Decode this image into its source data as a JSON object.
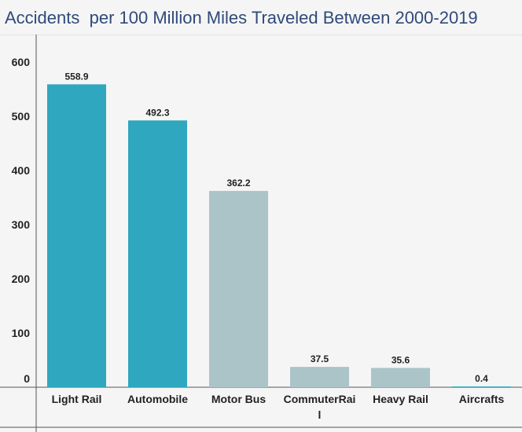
{
  "title": "Accidents  per 100 Million Miles Traveled Between 2000-2019",
  "colors": {
    "highlight": "#2ea7bf",
    "muted": "#abc4c8",
    "axis": "#555555",
    "text": "#222222",
    "title": "#2f4a7a"
  },
  "chart_data": {
    "type": "bar",
    "title": "Accidents  per 100 Million Miles Traveled Between 2000-2019",
    "categories": [
      "Light Rail",
      "Automobile",
      "Motor Bus",
      "CommuterRail",
      "Heavy Rail",
      "Aircrafts"
    ],
    "category_lines": [
      [
        "Light Rail"
      ],
      [
        "Automobile"
      ],
      [
        "Motor Bus"
      ],
      [
        "CommuterRai",
        "l"
      ],
      [
        "Heavy Rail"
      ],
      [
        "Aircrafts"
      ]
    ],
    "values": [
      558.9,
      492.3,
      362.2,
      37.5,
      35.6,
      0.4
    ],
    "value_labels": [
      "558.9",
      "492.3",
      "362.2",
      "37.5",
      "35.6",
      "0.4"
    ],
    "bar_colors": [
      "highlight",
      "highlight",
      "muted",
      "muted",
      "muted",
      "highlight"
    ],
    "xlabel": "",
    "ylabel": "",
    "ylim": [
      0,
      640
    ],
    "yticks": [
      0,
      100,
      200,
      300,
      400,
      500,
      600
    ],
    "ytick_labels": [
      "0",
      "100",
      "200",
      "300",
      "400",
      "500",
      "600"
    ],
    "grid": false,
    "legend": "none"
  }
}
